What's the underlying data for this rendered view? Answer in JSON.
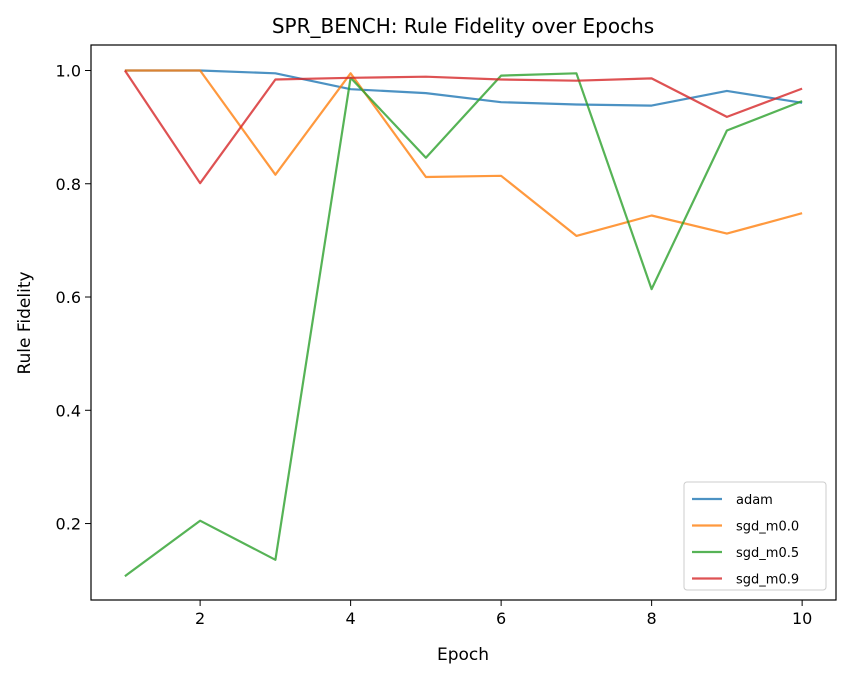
{
  "chart_data": {
    "type": "line",
    "title": "SPR_BENCH: Rule Fidelity over Epochs",
    "xlabel": "Epoch",
    "ylabel": "Rule Fidelity",
    "xlim": [
      0.55,
      10.45
    ],
    "ylim": [
      0.065,
      1.045
    ],
    "xticks": [
      2,
      4,
      6,
      8,
      10
    ],
    "yticks": [
      0.2,
      0.4,
      0.6,
      0.8,
      1.0
    ],
    "ytick_labels": [
      "0.2",
      "0.4",
      "0.6",
      "0.8",
      "1.0"
    ],
    "grid": false,
    "legend_position": "lower-right",
    "x": [
      1,
      2,
      3,
      4,
      5,
      6,
      7,
      8,
      9,
      10
    ],
    "series": [
      {
        "name": "adam",
        "color": "#1f77b4",
        "values": [
          1.0,
          1.0,
          0.995,
          0.967,
          0.96,
          0.944,
          0.94,
          0.938,
          0.964,
          0.943
        ]
      },
      {
        "name": "sgd_m0.0",
        "color": "#ff7f0e",
        "values": [
          1.0,
          1.0,
          0.816,
          0.995,
          0.812,
          0.814,
          0.708,
          0.744,
          0.712,
          0.748
        ]
      },
      {
        "name": "sgd_m0.5",
        "color": "#2ca02c",
        "values": [
          0.107,
          0.205,
          0.136,
          0.987,
          0.846,
          0.991,
          0.995,
          0.614,
          0.894,
          0.946
        ]
      },
      {
        "name": "sgd_m0.9",
        "color": "#d62728",
        "values": [
          1.0,
          0.801,
          0.984,
          0.987,
          0.989,
          0.984,
          0.982,
          0.986,
          0.918,
          0.968
        ]
      }
    ]
  }
}
